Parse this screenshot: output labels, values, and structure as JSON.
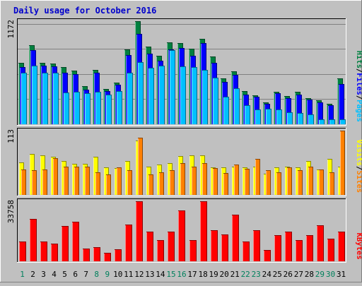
{
  "chart_data": {
    "title": "Daily usage for October 2016",
    "categories": [
      "1",
      "2",
      "3",
      "4",
      "5",
      "6",
      "7",
      "8",
      "9",
      "10",
      "11",
      "12",
      "13",
      "14",
      "15",
      "16",
      "17",
      "18",
      "19",
      "20",
      "21",
      "22",
      "23",
      "24",
      "25",
      "26",
      "27",
      "28",
      "29",
      "30",
      "31"
    ],
    "weekend_days": [
      "1",
      "8",
      "9",
      "15",
      "16",
      "22",
      "23",
      "29",
      "30"
    ],
    "colors": {
      "title": "#0000CC",
      "hits": "#008040",
      "files": "#0000FF",
      "pages": "#00C0FF",
      "visits": "#FFFF00",
      "sites": "#FF8000",
      "kbytes": "#FF0000",
      "weekday_label": "#000000",
      "weekend_label": "#00805C",
      "separator": "#000000"
    },
    "panels": [
      {
        "type": "bar",
        "ymax_label": "1172",
        "ylim": [
          0,
          1172
        ],
        "legend": [
          "Pages",
          "/",
          "Files",
          "/",
          "Hits"
        ],
        "series": [
          {
            "name": "Hits",
            "values": [
              700,
              900,
              700,
              690,
              650,
              610,
              430,
              620,
              400,
              470,
              850,
              1172,
              880,
              780,
              930,
              920,
              860,
              970,
              770,
              520,
              600,
              380,
              330,
              250,
              370,
              320,
              370,
              300,
              270,
              230,
              520
            ]
          },
          {
            "name": "Files",
            "values": [
              650,
              840,
              670,
              660,
              590,
              570,
              390,
              590,
              380,
              450,
              790,
              1030,
              800,
              720,
              850,
              870,
              780,
              920,
              700,
              480,
              560,
              340,
              310,
              230,
              350,
              300,
              340,
              280,
              250,
              220,
              460
            ]
          },
          {
            "name": "Pages",
            "values": [
              590,
              670,
              590,
              590,
              360,
              370,
              350,
              370,
              340,
              380,
              590,
              710,
              640,
              670,
              840,
              660,
              650,
              620,
              530,
              310,
              410,
              220,
              170,
              180,
              170,
              140,
              130,
              110,
              60,
              60,
              60
            ]
          }
        ]
      },
      {
        "type": "bar",
        "ymax_label": "113",
        "ylim": [
          0,
          113
        ],
        "legend": [
          "Sites",
          "/",
          "Visits"
        ],
        "series": [
          {
            "name": "Visits",
            "values": [
              57,
              72,
              70,
              67,
              60,
              55,
              55,
              67,
              48,
              47,
              59,
              95,
              50,
              54,
              56,
              68,
              70,
              69,
              48,
              49,
              50,
              49,
              50,
              37,
              49,
              50,
              48,
              59,
              45,
              63,
              50
            ]
          },
          {
            "name": "Sites",
            "values": [
              45,
              43,
              45,
              64,
              50,
              50,
              50,
              40,
              36,
              49,
              43,
              100,
              36,
              40,
              44,
              56,
              50,
              56,
              47,
              39,
              54,
              46,
              63,
              43,
              40,
              49,
              44,
              50,
              45,
              40,
              113
            ]
          }
        ]
      },
      {
        "type": "bar",
        "ymax_label": "33758",
        "ylim": [
          0,
          33758
        ],
        "legend": [
          "KBytes"
        ],
        "series": [
          {
            "name": "KBytes",
            "values": [
              11100,
              23800,
              11000,
              9800,
              19800,
              22100,
              7200,
              7800,
              4900,
              6600,
              20800,
              33758,
              16500,
              12100,
              16500,
              28500,
              11900,
              33758,
              17500,
              15100,
              26200,
              11100,
              17500,
              6200,
              14500,
              16500,
              11900,
              14800,
              20200,
              12600,
              16500
            ]
          }
        ]
      }
    ]
  }
}
